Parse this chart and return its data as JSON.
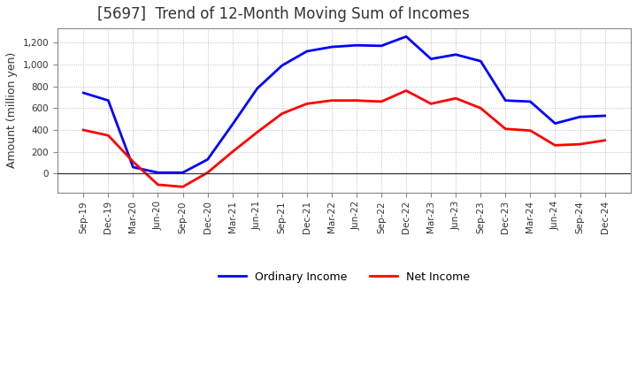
{
  "title": "[5697]  Trend of 12-Month Moving Sum of Incomes",
  "ylabel": "Amount (million yen)",
  "x_labels": [
    "Sep-19",
    "Dec-19",
    "Mar-20",
    "Jun-20",
    "Sep-20",
    "Dec-20",
    "Mar-21",
    "Jun-21",
    "Sep-21",
    "Dec-21",
    "Mar-22",
    "Jun-22",
    "Sep-22",
    "Dec-22",
    "Mar-23",
    "Jun-23",
    "Sep-23",
    "Dec-23",
    "Mar-24",
    "Jun-24",
    "Sep-24",
    "Dec-24"
  ],
  "ordinary_income": [
    740,
    670,
    60,
    10,
    10,
    130,
    450,
    780,
    990,
    1120,
    1160,
    1175,
    1170,
    1255,
    1050,
    1090,
    1030,
    670,
    660,
    460,
    520,
    530
  ],
  "net_income": [
    400,
    350,
    110,
    -100,
    -120,
    10,
    200,
    380,
    550,
    640,
    670,
    670,
    660,
    760,
    640,
    690,
    600,
    410,
    395,
    260,
    270,
    305
  ],
  "ordinary_color": "#0000FF",
  "net_color": "#FF0000",
  "ylim_min": -170,
  "ylim_max": 1330,
  "yticks": [
    0,
    200,
    400,
    600,
    800,
    1000,
    1200
  ],
  "background_color": "#FFFFFF",
  "plot_bg_color": "#FFFFFF",
  "grid_color": "#BBBBBB",
  "title_color": "#333333"
}
